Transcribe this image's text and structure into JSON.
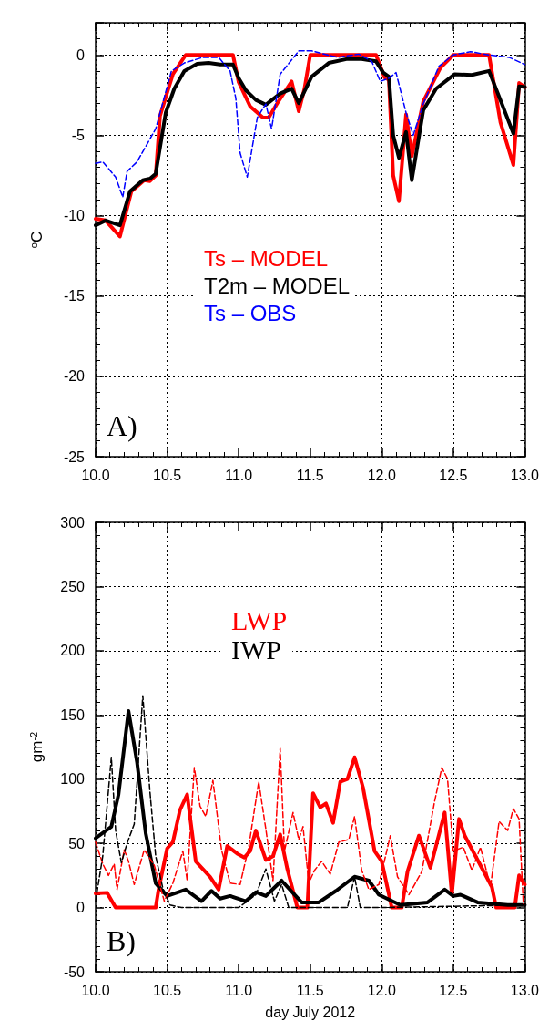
{
  "chart_data": [
    {
      "type": "line",
      "ylabel": "$^{o}$C",
      "annotations": [
        "A)"
      ],
      "xlim": [
        10,
        13.0
      ],
      "xticks": [
        {
          "value": 10,
          "label": "10.0"
        },
        {
          "value": 10.5,
          "label": "10.5"
        },
        {
          "value": 11,
          "label": "11.0"
        },
        {
          "value": 11.5,
          "label": "11.5"
        },
        {
          "value": 12,
          "label": "12.0"
        },
        {
          "value": 12.5,
          "label": "12.5"
        },
        {
          "value": 13,
          "label": "13.0"
        }
      ],
      "ylim": [
        -25,
        2
      ],
      "yticks": [
        -25,
        -20,
        -15,
        -10,
        -5,
        0
      ],
      "grid": true,
      "legend": "center",
      "marker": "none",
      "series": [
        {
          "name": "Ts – MODEL",
          "color": "#ff0000",
          "line_style": "solid",
          "x": [
            10.0,
            10.07,
            10.17,
            10.25,
            10.34,
            10.38,
            10.42,
            10.45,
            10.54,
            10.63,
            10.96,
            11.0,
            11.08,
            11.17,
            11.21,
            11.27,
            11.37,
            11.42,
            11.46,
            11.5,
            11.96,
            12.02,
            12.05,
            12.08,
            12.12,
            12.17,
            12.21,
            12.29,
            12.41,
            12.5,
            12.75,
            12.83,
            12.92,
            12.96,
            13.0
          ],
          "values": [
            -10.2,
            -10.3,
            -11.3,
            -8.5,
            -7.8,
            -7.85,
            -7.5,
            -3.8,
            -1.2,
            0,
            0,
            -1.7,
            -3.2,
            -3.9,
            -3.9,
            -3.0,
            -1.65,
            -3.5,
            -2.1,
            0,
            0,
            -1.4,
            -1.55,
            -7.5,
            -9.1,
            -3.7,
            -6.3,
            -2.9,
            -0.8,
            0,
            0,
            -4.2,
            -6.85,
            -1.75,
            -2.0
          ]
        },
        {
          "name": "T2m – MODEL",
          "color": "#000000",
          "line_style": "solid",
          "x": [
            10.0,
            10.07,
            10.17,
            10.24,
            10.33,
            10.38,
            10.42,
            10.49,
            10.55,
            10.62,
            10.71,
            10.79,
            10.87,
            10.96,
            11.0,
            11.05,
            11.12,
            11.19,
            11.29,
            11.37,
            11.42,
            11.51,
            11.63,
            11.76,
            11.86,
            11.96,
            12.01,
            12.05,
            12.08,
            12.12,
            12.17,
            12.21,
            12.29,
            12.38,
            12.51,
            12.63,
            12.75,
            12.84,
            12.92,
            12.96,
            13.0
          ],
          "values": [
            -10.6,
            -10.3,
            -10.6,
            -8.5,
            -7.8,
            -7.7,
            -7.4,
            -3.6,
            -2.1,
            -1.0,
            -0.55,
            -0.5,
            -0.6,
            -0.6,
            -1.45,
            -2.2,
            -2.8,
            -3.1,
            -2.4,
            -2.1,
            -3.0,
            -1.35,
            -0.5,
            -0.25,
            -0.25,
            -0.4,
            -1.1,
            -1.35,
            -5.0,
            -6.4,
            -4.8,
            -7.8,
            -3.45,
            -2.1,
            -1.2,
            -1.25,
            -1.0,
            -3.05,
            -4.9,
            -1.95,
            -2.0
          ]
        },
        {
          "name": "Ts – OBS",
          "color": "#0000ff",
          "line_style": "dashed",
          "x": [
            10.0,
            10.05,
            10.14,
            10.19,
            10.22,
            10.29,
            10.42,
            10.53,
            10.62,
            10.75,
            10.86,
            10.94,
            10.98,
            11.01,
            11.06,
            11.13,
            11.19,
            11.23,
            11.29,
            11.42,
            11.51,
            11.69,
            11.84,
            11.93,
            11.99,
            12.05,
            12.1,
            12.17,
            12.22,
            12.29,
            12.4,
            12.5,
            12.62,
            12.75,
            12.89,
            13.0
          ],
          "values": [
            -6.75,
            -6.65,
            -7.6,
            -8.85,
            -7.25,
            -6.65,
            -4.6,
            -1.0,
            -0.5,
            -0.15,
            -0.15,
            -1.0,
            -2.7,
            -6.1,
            -7.6,
            -3.9,
            -3.05,
            -4.6,
            -1.2,
            0.25,
            0.25,
            -0.15,
            0.05,
            -0.4,
            -1.65,
            -1.45,
            -1.1,
            -3.6,
            -5.0,
            -3.05,
            -0.7,
            0,
            0.2,
            0,
            -0.15,
            -0.6
          ]
        }
      ]
    },
    {
      "type": "line",
      "xlabel": "day July 2012",
      "ylabel": "gm$^{-2}$",
      "annotations": [
        "B)"
      ],
      "xlim": [
        10,
        13.0
      ],
      "xticks": [
        {
          "value": 10,
          "label": "10.0"
        },
        {
          "value": 10.5,
          "label": "10.5"
        },
        {
          "value": 11,
          "label": "11.0"
        },
        {
          "value": 11.5,
          "label": "11.5"
        },
        {
          "value": 12,
          "label": "12.0"
        },
        {
          "value": 12.5,
          "label": "12.5"
        },
        {
          "value": 13,
          "label": "13.0"
        }
      ],
      "ylim": [
        -50,
        300
      ],
      "yticks": [
        -50,
        0,
        50,
        100,
        150,
        200,
        250,
        300
      ],
      "grid": true,
      "legend": "top left",
      "marker": "none",
      "series": [
        {
          "color": "#ff0000",
          "line_style": "dashed",
          "x": [
            10.0,
            10.05,
            10.09,
            10.13,
            10.15,
            10.2,
            10.23,
            10.27,
            10.34,
            10.41,
            10.48,
            10.54,
            10.61,
            10.64,
            10.69,
            10.73,
            10.77,
            10.82,
            10.88,
            10.94,
            11.01,
            11.07,
            11.14,
            11.19,
            11.24,
            11.29,
            11.32,
            11.38,
            11.42,
            11.45,
            11.49,
            11.53,
            11.58,
            11.64,
            11.7,
            11.77,
            11.81,
            11.86,
            11.91,
            11.98,
            12.06,
            12.11,
            12.19,
            12.28,
            12.37,
            12.42,
            12.46,
            12.5,
            12.57,
            12.63,
            12.69,
            12.76,
            12.82,
            12.88,
            12.92,
            12.96,
            12.99
          ],
          "values": [
            51,
            34,
            25,
            34,
            14,
            45,
            36,
            18,
            45,
            33,
            5,
            19,
            44,
            21,
            109,
            79,
            71,
            99,
            45,
            19,
            18,
            47,
            98,
            61,
            21,
            124,
            44,
            74,
            53,
            63,
            19,
            29,
            36,
            26,
            51,
            53,
            71,
            29,
            14,
            18,
            56,
            24,
            10,
            28,
            83,
            109,
            100,
            44,
            47,
            29,
            47,
            16,
            67,
            60,
            77,
            69,
            2
          ]
        },
        {
          "color": "#000000",
          "line_style": "dashed",
          "x": [
            10.0,
            10.05,
            10.11,
            10.14,
            10.18,
            10.22,
            10.27,
            10.33,
            10.38,
            10.42,
            10.47,
            10.52,
            10.6,
            11.0,
            11.12,
            11.19,
            11.25,
            11.3,
            11.35,
            11.76,
            11.81,
            11.85,
            12.0,
            13.0
          ],
          "values": [
            5,
            40,
            117,
            60,
            35,
            50,
            65,
            165,
            90,
            40,
            15,
            2,
            0,
            0,
            10,
            30,
            5,
            18,
            0,
            0,
            24,
            0,
            0,
            2
          ]
        },
        {
          "name": "LWP",
          "color": "#ff0000",
          "line_style": "solid",
          "x": [
            10.0,
            10.08,
            10.14,
            10.42,
            10.44,
            10.5,
            10.54,
            10.59,
            10.64,
            10.7,
            10.75,
            10.8,
            10.86,
            10.92,
            10.99,
            11.04,
            11.08,
            11.12,
            11.19,
            11.24,
            11.29,
            11.34,
            11.41,
            11.48,
            11.52,
            11.57,
            11.61,
            11.66,
            11.71,
            11.76,
            11.81,
            11.87,
            11.95,
            12.0,
            12.07,
            12.14,
            12.18,
            12.26,
            12.34,
            12.44,
            12.49,
            12.54,
            12.58,
            12.77,
            12.8,
            12.93,
            12.96,
            13.0
          ],
          "values": [
            11,
            11.5,
            0,
            0,
            14,
            46,
            51,
            76,
            88,
            36,
            30,
            24,
            14,
            48,
            42,
            39,
            44,
            60,
            37,
            40,
            57,
            30,
            0,
            0,
            89,
            78,
            81,
            66,
            98,
            100,
            117,
            93,
            44,
            36,
            0,
            0,
            28,
            56,
            31,
            74,
            10,
            69,
            56,
            16,
            0,
            0,
            25,
            18
          ]
        },
        {
          "name": "IWP",
          "color": "#000000",
          "line_style": "solid",
          "x": [
            10.0,
            10.11,
            10.16,
            10.23,
            10.29,
            10.35,
            10.42,
            10.5,
            10.63,
            10.74,
            10.81,
            10.87,
            10.94,
            11.05,
            11.12,
            11.19,
            11.3,
            11.44,
            11.56,
            11.68,
            11.81,
            11.91,
            11.98,
            12.13,
            12.32,
            12.44,
            12.5,
            12.55,
            12.67,
            12.88,
            13.0
          ],
          "values": [
            54,
            63,
            88,
            153,
            113,
            58,
            19,
            9,
            14,
            5,
            13,
            7,
            9,
            5,
            12,
            9,
            21,
            4,
            4,
            13,
            24,
            21,
            10,
            2,
            4,
            14,
            9,
            10,
            4,
            2,
            2
          ]
        }
      ]
    }
  ]
}
